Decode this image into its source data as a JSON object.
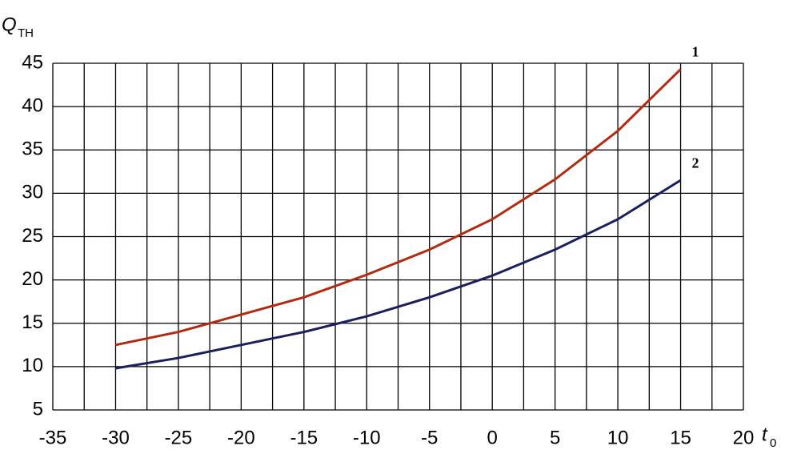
{
  "chart_data": {
    "type": "line",
    "y_label": {
      "main": "Q",
      "sub": "TH"
    },
    "x_label": {
      "main": "t",
      "sub": "0"
    },
    "x": [
      -30,
      -25,
      -20,
      -15,
      -10,
      -5,
      0,
      5,
      10,
      15
    ],
    "series": [
      {
        "name": "1",
        "color": "#b22a10",
        "values": [
          12.5,
          14,
          16,
          18,
          20.6,
          23.5,
          27,
          31.6,
          37.2,
          44.3
        ]
      },
      {
        "name": "2",
        "color": "#1a1f5e",
        "values": [
          9.8,
          11,
          12.5,
          14,
          15.8,
          18,
          20.5,
          23.5,
          27,
          31.5
        ]
      }
    ],
    "xlim": [
      -35,
      20
    ],
    "ylim": [
      5,
      45
    ],
    "xticks": [
      -35,
      -30,
      -25,
      -20,
      -15,
      -10,
      -5,
      0,
      5,
      10,
      15,
      20
    ],
    "x_minor_ticks": [
      -32.5,
      -27.5,
      -22.5,
      -17.5,
      -12.5,
      -7.5,
      -2.5,
      2.5,
      7.5,
      12.5,
      17.5
    ],
    "yticks": [
      5,
      10,
      15,
      20,
      25,
      30,
      35,
      40,
      45
    ],
    "grid": true
  }
}
